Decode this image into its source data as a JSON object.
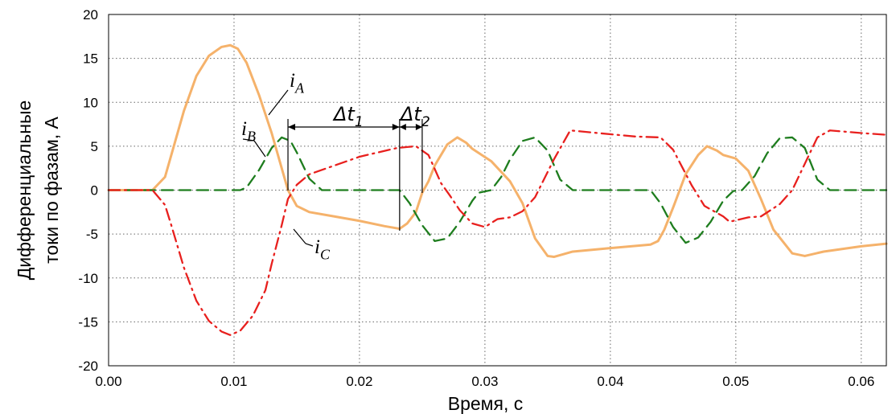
{
  "chart_data": {
    "type": "line",
    "xlabel": "Время, с",
    "ylabel_lines": [
      "Дифференциальные",
      "токи по фазам, А"
    ],
    "xlim": [
      0,
      0.062
    ],
    "ylim": [
      -20,
      20
    ],
    "x_ticks": [
      "0.00",
      "0.01",
      "0.02",
      "0.03",
      "0.04",
      "0.05",
      "0.06"
    ],
    "y_ticks": [
      "20",
      "15",
      "10",
      "5",
      "0",
      "-5",
      "-10",
      "-15",
      "-20"
    ],
    "grid": true,
    "series": [
      {
        "name": "iA",
        "color": "#f5b26b",
        "dash": "solid",
        "points": [
          [
            0,
            0
          ],
          [
            0.0035,
            0
          ],
          [
            0.0045,
            1.5
          ],
          [
            0.005,
            4
          ],
          [
            0.006,
            9
          ],
          [
            0.007,
            13
          ],
          [
            0.008,
            15.3
          ],
          [
            0.009,
            16.3
          ],
          [
            0.0097,
            16.5
          ],
          [
            0.0103,
            16.1
          ],
          [
            0.011,
            14.5
          ],
          [
            0.012,
            10.8
          ],
          [
            0.013,
            6.5
          ],
          [
            0.0138,
            2.5
          ],
          [
            0.0143,
            0
          ],
          [
            0.015,
            -1.8
          ],
          [
            0.016,
            -2.5
          ],
          [
            0.018,
            -3.0
          ],
          [
            0.02,
            -3.5
          ],
          [
            0.022,
            -4.1
          ],
          [
            0.0232,
            -4.4
          ],
          [
            0.0238,
            -3.8
          ],
          [
            0.0245,
            -2.5
          ],
          [
            0.025,
            -0.3
          ],
          [
            0.0255,
            1.0
          ],
          [
            0.026,
            2.8
          ],
          [
            0.027,
            5.2
          ],
          [
            0.0278,
            6.0
          ],
          [
            0.0285,
            5.4
          ],
          [
            0.029,
            4.7
          ],
          [
            0.0305,
            3.3
          ],
          [
            0.032,
            1.0
          ],
          [
            0.033,
            -1.5
          ],
          [
            0.034,
            -5.5
          ],
          [
            0.035,
            -7.5
          ],
          [
            0.0355,
            -7.6
          ],
          [
            0.037,
            -7.0
          ],
          [
            0.04,
            -6.6
          ],
          [
            0.0432,
            -6.2
          ],
          [
            0.0438,
            -5.8
          ],
          [
            0.0443,
            -4.5
          ],
          [
            0.045,
            -2.0
          ],
          [
            0.046,
            1.8
          ],
          [
            0.047,
            4.0
          ],
          [
            0.0477,
            5.0
          ],
          [
            0.0485,
            4.5
          ],
          [
            0.049,
            4.0
          ],
          [
            0.05,
            3.6
          ],
          [
            0.051,
            2.2
          ],
          [
            0.052,
            -1.0
          ],
          [
            0.053,
            -4.5
          ],
          [
            0.0545,
            -7.2
          ],
          [
            0.0555,
            -7.5
          ],
          [
            0.057,
            -7.0
          ],
          [
            0.06,
            -6.4
          ],
          [
            0.062,
            -6.1
          ]
        ]
      },
      {
        "name": "iB",
        "color": "#1e7d1e",
        "dash": "dashed",
        "points": [
          [
            0,
            0
          ],
          [
            0.0105,
            0
          ],
          [
            0.011,
            0.3
          ],
          [
            0.012,
            2.3
          ],
          [
            0.013,
            4.8
          ],
          [
            0.0138,
            6.0
          ],
          [
            0.0145,
            5.6
          ],
          [
            0.015,
            4.3
          ],
          [
            0.016,
            1.3
          ],
          [
            0.017,
            0
          ],
          [
            0.0232,
            0
          ],
          [
            0.024,
            -1.5
          ],
          [
            0.025,
            -4.0
          ],
          [
            0.026,
            -5.8
          ],
          [
            0.027,
            -5.5
          ],
          [
            0.028,
            -3.6
          ],
          [
            0.029,
            -1.2
          ],
          [
            0.0295,
            -0.3
          ],
          [
            0.0305,
            0
          ],
          [
            0.0313,
            1.5
          ],
          [
            0.032,
            3.5
          ],
          [
            0.033,
            5.6
          ],
          [
            0.034,
            6.0
          ],
          [
            0.035,
            4.5
          ],
          [
            0.036,
            1.2
          ],
          [
            0.037,
            0
          ],
          [
            0.0432,
            0
          ],
          [
            0.044,
            -1.5
          ],
          [
            0.045,
            -4.2
          ],
          [
            0.046,
            -6.0
          ],
          [
            0.047,
            -5.4
          ],
          [
            0.048,
            -3.6
          ],
          [
            0.049,
            -1.2
          ],
          [
            0.0498,
            -0.1
          ],
          [
            0.0505,
            0
          ],
          [
            0.0515,
            1.6
          ],
          [
            0.0525,
            4.2
          ],
          [
            0.0535,
            5.9
          ],
          [
            0.0545,
            6.0
          ],
          [
            0.0555,
            4.8
          ],
          [
            0.0565,
            1.2
          ],
          [
            0.0575,
            0
          ],
          [
            0.062,
            0
          ]
        ]
      },
      {
        "name": "iC",
        "color": "#e8201e",
        "dash": "dash-dot",
        "points": [
          [
            0,
            0
          ],
          [
            0.0035,
            0
          ],
          [
            0.0045,
            -1.7
          ],
          [
            0.005,
            -4.0
          ],
          [
            0.006,
            -8.8
          ],
          [
            0.007,
            -12.6
          ],
          [
            0.008,
            -14.9
          ],
          [
            0.009,
            -16.1
          ],
          [
            0.0097,
            -16.5
          ],
          [
            0.0105,
            -16.0
          ],
          [
            0.0115,
            -14.3
          ],
          [
            0.0125,
            -11.4
          ],
          [
            0.013,
            -8.4
          ],
          [
            0.0138,
            -4.0
          ],
          [
            0.0143,
            -1.0
          ],
          [
            0.015,
            0.6
          ],
          [
            0.016,
            1.8
          ],
          [
            0.018,
            2.8
          ],
          [
            0.02,
            3.8
          ],
          [
            0.023,
            4.8
          ],
          [
            0.0245,
            5.0
          ],
          [
            0.0255,
            4.0
          ],
          [
            0.0265,
            0.8
          ],
          [
            0.0272,
            -0.6
          ],
          [
            0.028,
            -2.3
          ],
          [
            0.029,
            -3.8
          ],
          [
            0.03,
            -4.2
          ],
          [
            0.031,
            -3.3
          ],
          [
            0.032,
            -3.1
          ],
          [
            0.033,
            -2.4
          ],
          [
            0.034,
            -0.8
          ],
          [
            0.0355,
            3.5
          ],
          [
            0.0368,
            6.8
          ],
          [
            0.039,
            6.5
          ],
          [
            0.042,
            6.1
          ],
          [
            0.044,
            6.0
          ],
          [
            0.045,
            4.6
          ],
          [
            0.0465,
            0.5
          ],
          [
            0.0475,
            -1.8
          ],
          [
            0.049,
            -3.0
          ],
          [
            0.0495,
            -3.6
          ],
          [
            0.051,
            -3.1
          ],
          [
            0.052,
            -3.0
          ],
          [
            0.0535,
            -1.6
          ],
          [
            0.0545,
            0
          ],
          [
            0.0555,
            3.0
          ],
          [
            0.0565,
            6.0
          ],
          [
            0.0575,
            6.8
          ],
          [
            0.06,
            6.5
          ],
          [
            0.062,
            6.3
          ]
        ]
      }
    ],
    "annotations": {
      "iA": {
        "main": "i",
        "sub": "A"
      },
      "iB": {
        "main": "i",
        "sub": "B"
      },
      "iC": {
        "main": "i",
        "sub": "C"
      },
      "dt1": {
        "main": "Δt",
        "sub": "1"
      },
      "dt2": {
        "main": "Δt",
        "sub": "2"
      }
    },
    "markers": {
      "dt1_start": 0.0143,
      "dt1_end": 0.0232,
      "dt2_end": 0.025
    }
  }
}
